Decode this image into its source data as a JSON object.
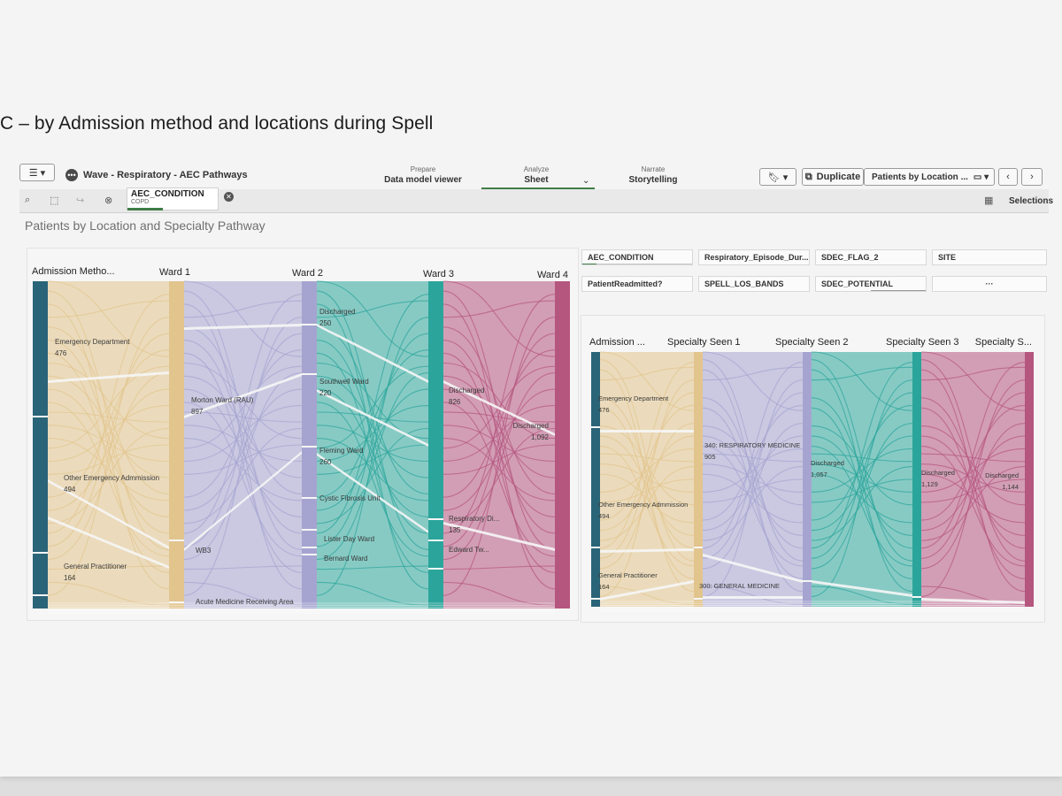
{
  "page_heading": "C – by Admission method and locations during Spell",
  "toolbar": {
    "menu_icon": "hamburger-menu-icon",
    "app_title": "Wave - Respiratory - AEC Pathways",
    "tabs": [
      {
        "small": "Prepare",
        "label": "Data model viewer"
      },
      {
        "small": "Analyze",
        "label": "Sheet"
      },
      {
        "small": "Narrate",
        "label": "Storytelling"
      }
    ],
    "duplicate_label": "Duplicate",
    "sheet_select": "Patients by Location ...",
    "prev_icon": "chevron-left-icon",
    "next_icon": "chevron-right-icon"
  },
  "selection_bar": {
    "chip_field": "AEC_CONDITION",
    "chip_value": "COPD",
    "selections_label": "Selections"
  },
  "sheet_title": "Patients by Location and Specialty Pathway",
  "filters": [
    "AEC_CONDITION",
    "Respiratory_Episode_Dur...",
    "SDEC_FLAG_2",
    "SITE",
    "PatientReadmitted?",
    "SPELL_LOS_BANDS",
    "SDEC_POTENTIAL",
    "···"
  ],
  "chart_data": [
    {
      "type": "sankey",
      "columns": [
        "Admission Metho...",
        "Ward 1",
        "Ward 2",
        "Ward 3",
        "Ward 4"
      ],
      "colors": [
        "#2a6478",
        "#e2c48d",
        "#a5a4d0",
        "#2ba59b",
        "#b5567f"
      ],
      "nodes": [
        {
          "column": 0,
          "label": "Emergency Department",
          "value": "476"
        },
        {
          "column": 0,
          "label": "Other Emergency Admmission",
          "value": "494"
        },
        {
          "column": 0,
          "label": "General Practitioner",
          "value": "164"
        },
        {
          "column": 1,
          "label": "Morton Ward (RAU)",
          "value": "897"
        },
        {
          "column": 1,
          "label": "WB3",
          "value": ""
        },
        {
          "column": 1,
          "label": "Acute Medicine Receiving Area",
          "value": ""
        },
        {
          "column": 2,
          "label": "Discharged",
          "value": "250"
        },
        {
          "column": 2,
          "label": "Southwell Ward",
          "value": "220"
        },
        {
          "column": 2,
          "label": "Fleming Ward",
          "value": "260"
        },
        {
          "column": 2,
          "label": "Cystic Fibrosis Unit",
          "value": ""
        },
        {
          "column": 2,
          "label": "Lister Day Ward",
          "value": ""
        },
        {
          "column": 2,
          "label": "Bernard Ward",
          "value": ""
        },
        {
          "column": 3,
          "label": "Discharged",
          "value": "826"
        },
        {
          "column": 3,
          "label": "Respiratory Di...",
          "value": "135"
        },
        {
          "column": 3,
          "label": "Edward Tw...",
          "value": ""
        },
        {
          "column": 4,
          "label": "Discharged",
          "value": "1,092"
        }
      ]
    },
    {
      "type": "sankey",
      "columns": [
        "Admission ...",
        "Specialty Seen 1",
        "Specialty Seen 2",
        "Specialty Seen 3",
        "Specialty S..."
      ],
      "colors": [
        "#2a6478",
        "#e2c48d",
        "#a5a4d0",
        "#2ba59b",
        "#b5567f"
      ],
      "nodes": [
        {
          "column": 0,
          "label": "Emergency Department",
          "value": "476"
        },
        {
          "column": 0,
          "label": "Other Emergency Admmission",
          "value": "494"
        },
        {
          "column": 0,
          "label": "General Practitioner",
          "value": "164"
        },
        {
          "column": 1,
          "label": "340: RESPIRATORY MEDICINE",
          "value": "905"
        },
        {
          "column": 1,
          "label": "300: GENERAL MEDICINE",
          "value": ""
        },
        {
          "column": 2,
          "label": "Discharged",
          "value": "1,057"
        },
        {
          "column": 3,
          "label": "Discharged",
          "value": "1,129"
        },
        {
          "column": 4,
          "label": "Discharged",
          "value": "1,144"
        }
      ]
    }
  ]
}
